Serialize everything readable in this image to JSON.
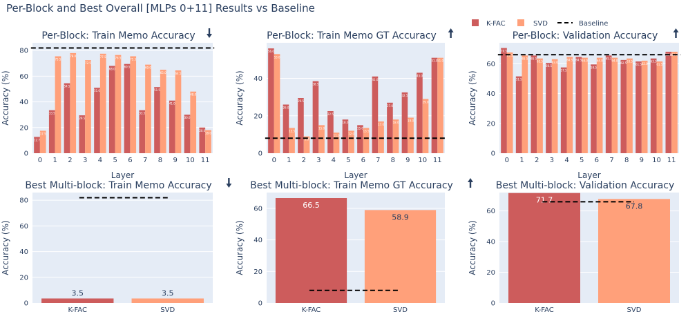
{
  "figure_title": "Per-Block and Best Overall [MLPs 0+11] Results vs Baseline",
  "legend": [
    {
      "label": "K-FAC",
      "kind": "bar",
      "color": "#cd5c5c"
    },
    {
      "label": "SVD",
      "kind": "bar",
      "color": "#ffa07a"
    },
    {
      "label": "Baseline",
      "kind": "dash",
      "color": "#000000"
    }
  ],
  "colors": {
    "kfac": "#cd5c5c",
    "svd": "#ffa07a",
    "plot_bg": "#e5ecf6",
    "grid": "#ffffff",
    "baseline": "#000000"
  },
  "chart_data": [
    {
      "type": "bar",
      "title": "Per-Block: Train Memo Accuracy",
      "direction": "down",
      "xlabel": "Layer",
      "ylabel": "Accuracy (%)",
      "categories": [
        "0",
        "1",
        "2",
        "3",
        "4",
        "5",
        "6",
        "7",
        "8",
        "9",
        "10",
        "11"
      ],
      "series": [
        {
          "name": "K-FAC",
          "values": [
            12.7,
            33.5,
            54.5,
            29.5,
            51.0,
            68.0,
            69.5,
            33.5,
            51.5,
            41.0,
            30.0,
            20.0
          ]
        },
        {
          "name": "SVD",
          "values": [
            17.5,
            75.5,
            78.0,
            72.5,
            77.5,
            76.5,
            75.5,
            69.0,
            65.0,
            64.5,
            48.0,
            18.0
          ]
        }
      ],
      "baseline": 82.0,
      "ylim": [
        0,
        86
      ],
      "yticks": [
        0,
        20,
        40,
        60,
        80
      ],
      "bar_value_labels": "tiny"
    },
    {
      "type": "bar",
      "title": "Per-Block: Train Memo GT Accuracy",
      "direction": "up",
      "xlabel": "Layer",
      "ylabel": "Accuracy (%)",
      "categories": [
        "0",
        "1",
        "2",
        "3",
        "4",
        "5",
        "6",
        "7",
        "8",
        "9",
        "10",
        "11"
      ],
      "series": [
        {
          "name": "K-FAC",
          "values": [
            56.0,
            26.0,
            29.5,
            38.5,
            22.5,
            18.0,
            15.0,
            41.0,
            27.0,
            32.5,
            43.0,
            51.0
          ]
        },
        {
          "name": "SVD",
          "values": [
            53.0,
            13.5,
            9.0,
            15.0,
            11.0,
            12.0,
            13.5,
            17.0,
            18.0,
            19.0,
            29.0,
            51.0
          ]
        }
      ],
      "baseline": 8.0,
      "ylim": [
        0,
        59
      ],
      "yticks": [
        0,
        20,
        40
      ],
      "bar_value_labels": "tiny"
    },
    {
      "type": "bar",
      "title": "Per-Block: Validation Accuracy",
      "direction": "up",
      "xlabel": "Layer",
      "ylabel": "Accuracy (%)",
      "categories": [
        "0",
        "1",
        "2",
        "3",
        "4",
        "5",
        "6",
        "7",
        "8",
        "9",
        "10",
        "11"
      ],
      "series": [
        {
          "name": "K-FAC",
          "values": [
            70.5,
            51.5,
            65.5,
            60.5,
            57.5,
            64.5,
            59.5,
            65.5,
            62.5,
            61.5,
            63.5,
            68.0
          ]
        },
        {
          "name": "SVD",
          "values": [
            67.5,
            65.5,
            63.5,
            63.0,
            64.5,
            64.0,
            64.0,
            64.0,
            63.5,
            62.0,
            61.5,
            68.0
          ]
        }
      ],
      "baseline": 66.0,
      "ylim": [
        0,
        74
      ],
      "yticks": [
        0,
        20,
        40,
        60
      ],
      "bar_value_labels": "tiny"
    },
    {
      "type": "bar",
      "title": "Best Multi-block: Train Memo Accuracy",
      "direction": "down",
      "xlabel": "",
      "ylabel": "Accuracy (%)",
      "categories": [
        "K-FAC",
        "SVD"
      ],
      "values": [
        3.5,
        3.5
      ],
      "value_labels": [
        "3.5",
        "3.5"
      ],
      "baseline": 82.0,
      "ylim": [
        0,
        86
      ],
      "yticks": [
        0,
        20,
        40,
        60,
        80
      ],
      "bar_value_labels": "outside"
    },
    {
      "type": "bar",
      "title": "Best Multi-block: Train Memo GT Accuracy",
      "direction": "up",
      "xlabel": "",
      "ylabel": "Accuracy (%)",
      "categories": [
        "K-FAC",
        "SVD"
      ],
      "values": [
        66.5,
        58.9
      ],
      "value_labels": [
        "66.5",
        "58.9"
      ],
      "baseline": 8.0,
      "ylim": [
        0,
        70
      ],
      "yticks": [
        0,
        20,
        40,
        60
      ],
      "bar_value_labels": "inside"
    },
    {
      "type": "bar",
      "title": "Best Multi-block: Validation Accuracy",
      "direction": "up",
      "xlabel": "",
      "ylabel": "Accuracy (%)",
      "categories": [
        "K-FAC",
        "SVD"
      ],
      "values": [
        71.7,
        67.8
      ],
      "value_labels": [
        "71.7",
        "67.8"
      ],
      "baseline": 66.0,
      "ylim": [
        0,
        72
      ],
      "yticks": [
        0,
        20,
        40,
        60
      ],
      "bar_value_labels": "inside"
    }
  ]
}
